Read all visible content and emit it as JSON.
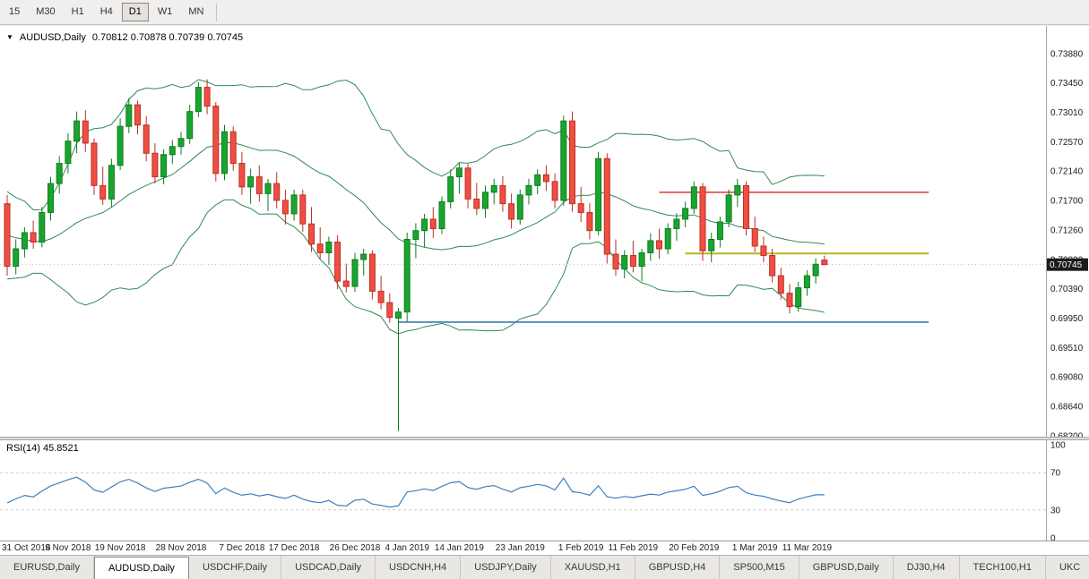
{
  "toolbar": {
    "timeframes": [
      "15",
      "M30",
      "H1",
      "H4",
      "D1",
      "W1",
      "MN"
    ],
    "active": "D1"
  },
  "chart": {
    "symbol_title": "AUDUSD,Daily",
    "ohlc_readout": "0.70812 0.70878 0.70739 0.70745",
    "current_price_label": "0.70745",
    "y_axis_labels": [
      "0.73880",
      "0.73450",
      "0.73010",
      "0.72570",
      "0.72140",
      "0.71700",
      "0.71260",
      "0.70820",
      "0.70390",
      "0.69950",
      "0.69510",
      "0.69080",
      "0.68640",
      "0.68200"
    ],
    "colors": {
      "bull": "#1aa52e",
      "bull_stroke": "#0f7c20",
      "bear": "#ef4f42",
      "bear_stroke": "#bd2f26",
      "bollinger": "#2e8b57",
      "rsi_line": "#3f7fbf",
      "price_label_bg": "#1c1c1c",
      "price_label_text": "#ffffff"
    }
  },
  "rsi_panel": {
    "label": "RSI(14) 45.8521",
    "levels": [
      100,
      70,
      30,
      0
    ],
    "dashed_levels": [
      70,
      30
    ]
  },
  "tabs": {
    "items": [
      "EURUSD,Daily",
      "AUDUSD,Daily",
      "USDCHF,Daily",
      "USDCAD,Daily",
      "USDCNH,H4",
      "USDJPY,Daily",
      "XAUUSD,H1",
      "GBPUSD,H4",
      "SP500,M15",
      "GBPUSD,Daily",
      "DJ30,H4",
      "TECH100,H1",
      "UKC"
    ],
    "active": "AUDUSD,Daily",
    "scroll_left_glyph": "◄"
  },
  "chart_data": {
    "type": "candlestick",
    "title": "AUDUSD,Daily",
    "timeframe": "D1",
    "y_range": [
      0.682,
      0.7388
    ],
    "current_ohlc": {
      "open": 0.70812,
      "high": 0.70878,
      "low": 0.70739,
      "close": 0.70745
    },
    "indicators": [
      {
        "name": "Bollinger Bands",
        "period": 20,
        "deviation": 2
      },
      {
        "name": "RSI",
        "period": 14,
        "value": 45.8521
      }
    ],
    "pre_closes": [
      0.719,
      0.7175,
      0.716,
      0.718,
      0.715,
      0.712,
      0.7095,
      0.708,
      0.711,
      0.713,
      0.7105,
      0.7085,
      0.7065,
      0.709,
      0.712,
      0.714,
      0.7115,
      0.7095,
      0.7125,
      0.715
    ],
    "candles_ohlc": [
      [
        0.7165,
        0.7178,
        0.7058,
        0.7072
      ],
      [
        0.7072,
        0.7112,
        0.706,
        0.7098
      ],
      [
        0.7098,
        0.713,
        0.7085,
        0.7122
      ],
      [
        0.7122,
        0.714,
        0.7098,
        0.7108
      ],
      [
        0.7108,
        0.716,
        0.71,
        0.7152
      ],
      [
        0.7152,
        0.7205,
        0.714,
        0.7195
      ],
      [
        0.7195,
        0.7236,
        0.718,
        0.7225
      ],
      [
        0.7225,
        0.727,
        0.721,
        0.7258
      ],
      [
        0.7258,
        0.7302,
        0.724,
        0.7288
      ],
      [
        0.7288,
        0.7304,
        0.7242,
        0.7255
      ],
      [
        0.7255,
        0.7262,
        0.7178,
        0.7192
      ],
      [
        0.7192,
        0.722,
        0.7163,
        0.7172
      ],
      [
        0.7172,
        0.7232,
        0.716,
        0.7222
      ],
      [
        0.7222,
        0.7292,
        0.7215,
        0.728
      ],
      [
        0.728,
        0.7322,
        0.727,
        0.7312
      ],
      [
        0.7312,
        0.7318,
        0.7268,
        0.7282
      ],
      [
        0.7282,
        0.7295,
        0.7228,
        0.724
      ],
      [
        0.724,
        0.7255,
        0.7195,
        0.7205
      ],
      [
        0.7205,
        0.7246,
        0.7194,
        0.7238
      ],
      [
        0.7238,
        0.726,
        0.7224,
        0.725
      ],
      [
        0.725,
        0.7272,
        0.7238,
        0.7262
      ],
      [
        0.7262,
        0.7312,
        0.7254,
        0.7302
      ],
      [
        0.7302,
        0.7346,
        0.7294,
        0.7338
      ],
      [
        0.7338,
        0.735,
        0.7298,
        0.731
      ],
      [
        0.731,
        0.7316,
        0.7198,
        0.721
      ],
      [
        0.721,
        0.7282,
        0.72,
        0.7272
      ],
      [
        0.7272,
        0.728,
        0.7214,
        0.7225
      ],
      [
        0.7225,
        0.7242,
        0.7178,
        0.719
      ],
      [
        0.719,
        0.7217,
        0.7165,
        0.7205
      ],
      [
        0.7205,
        0.7222,
        0.7168,
        0.718
      ],
      [
        0.718,
        0.7202,
        0.7154,
        0.7195
      ],
      [
        0.7195,
        0.7212,
        0.7158,
        0.717
      ],
      [
        0.717,
        0.7186,
        0.7134,
        0.715
      ],
      [
        0.715,
        0.7186,
        0.714,
        0.7178
      ],
      [
        0.7178,
        0.7186,
        0.7123,
        0.7135
      ],
      [
        0.7135,
        0.716,
        0.7093,
        0.7105
      ],
      [
        0.7105,
        0.713,
        0.7083,
        0.7092
      ],
      [
        0.7092,
        0.7116,
        0.7074,
        0.7108
      ],
      [
        0.7108,
        0.7118,
        0.7038,
        0.705
      ],
      [
        0.705,
        0.7076,
        0.7033,
        0.7042
      ],
      [
        0.7042,
        0.7092,
        0.7034,
        0.7082
      ],
      [
        0.7082,
        0.7098,
        0.7058,
        0.709
      ],
      [
        0.709,
        0.7096,
        0.7023,
        0.7035
      ],
      [
        0.7035,
        0.7058,
        0.7008,
        0.7018
      ],
      [
        0.7018,
        0.7032,
        0.6988,
        0.6996
      ],
      [
        0.6995,
        0.701,
        0.6827,
        0.7004
      ],
      [
        0.7004,
        0.7122,
        0.699,
        0.7112
      ],
      [
        0.7112,
        0.7136,
        0.7084,
        0.7125
      ],
      [
        0.7125,
        0.715,
        0.71,
        0.7142
      ],
      [
        0.7142,
        0.716,
        0.7114,
        0.7128
      ],
      [
        0.7128,
        0.7176,
        0.712,
        0.7168
      ],
      [
        0.7168,
        0.7216,
        0.7158,
        0.7205
      ],
      [
        0.7205,
        0.7226,
        0.718,
        0.7218
      ],
      [
        0.7218,
        0.7224,
        0.7158,
        0.7172
      ],
      [
        0.7172,
        0.7196,
        0.7148,
        0.7158
      ],
      [
        0.7158,
        0.7192,
        0.7144,
        0.7182
      ],
      [
        0.7182,
        0.7202,
        0.7164,
        0.7192
      ],
      [
        0.7192,
        0.7206,
        0.7153,
        0.7165
      ],
      [
        0.7165,
        0.718,
        0.7128,
        0.7142
      ],
      [
        0.7142,
        0.7186,
        0.7134,
        0.7178
      ],
      [
        0.7178,
        0.7202,
        0.7164,
        0.7192
      ],
      [
        0.7192,
        0.7216,
        0.7179,
        0.7208
      ],
      [
        0.7208,
        0.7222,
        0.7184,
        0.7198
      ],
      [
        0.7198,
        0.721,
        0.7158,
        0.717
      ],
      [
        0.717,
        0.7296,
        0.7162,
        0.7288
      ],
      [
        0.7288,
        0.7302,
        0.7153,
        0.7165
      ],
      [
        0.7165,
        0.719,
        0.7138,
        0.7152
      ],
      [
        0.7152,
        0.7166,
        0.7112,
        0.7125
      ],
      [
        0.7125,
        0.7242,
        0.7118,
        0.7232
      ],
      [
        0.7232,
        0.724,
        0.7076,
        0.709
      ],
      [
        0.709,
        0.7112,
        0.7058,
        0.7068
      ],
      [
        0.7068,
        0.7096,
        0.7054,
        0.7088
      ],
      [
        0.7088,
        0.711,
        0.7063,
        0.7072
      ],
      [
        0.7072,
        0.7098,
        0.705,
        0.7092
      ],
      [
        0.7092,
        0.7121,
        0.708,
        0.711
      ],
      [
        0.711,
        0.7128,
        0.7083,
        0.7098
      ],
      [
        0.7098,
        0.7136,
        0.709,
        0.7128
      ],
      [
        0.7128,
        0.7151,
        0.711,
        0.7142
      ],
      [
        0.7142,
        0.7168,
        0.713,
        0.7158
      ],
      [
        0.7158,
        0.7198,
        0.715,
        0.719
      ],
      [
        0.719,
        0.7196,
        0.708,
        0.7095
      ],
      [
        0.7095,
        0.7122,
        0.7078,
        0.7112
      ],
      [
        0.7112,
        0.7146,
        0.71,
        0.7138
      ],
      [
        0.7138,
        0.7186,
        0.713,
        0.7178
      ],
      [
        0.7178,
        0.7202,
        0.716,
        0.7192
      ],
      [
        0.7192,
        0.7198,
        0.7118,
        0.7128
      ],
      [
        0.7128,
        0.7146,
        0.7093,
        0.7102
      ],
      [
        0.7102,
        0.7116,
        0.7078,
        0.7088
      ],
      [
        0.7088,
        0.7098,
        0.7048,
        0.7058
      ],
      [
        0.7058,
        0.707,
        0.7023,
        0.7032
      ],
      [
        0.7032,
        0.7046,
        0.7002,
        0.7012
      ],
      [
        0.7012,
        0.7049,
        0.7004,
        0.704
      ],
      [
        0.704,
        0.7066,
        0.7028,
        0.7058
      ],
      [
        0.7058,
        0.7084,
        0.7046,
        0.7075
      ],
      [
        0.70812,
        0.70878,
        0.70739,
        0.70745
      ]
    ],
    "hlines": [
      {
        "name": "resistance-line",
        "price": 0.7182,
        "color": "#e23535",
        "from_index": 75,
        "to_index": 106,
        "stroke_width": 1.6
      },
      {
        "name": "current-level-line",
        "price": 0.7091,
        "color": "#b5b51c",
        "from_index": 78,
        "to_index": 106,
        "stroke_width": 2
      },
      {
        "name": "support-line",
        "price": 0.6989,
        "color": "#3d7ab8",
        "from_index": 45,
        "to_index": 106,
        "stroke_width": 1.6
      }
    ],
    "x_axis_labels": [
      {
        "label": "31 Oct 2018",
        "index": 0
      },
      {
        "label": "9 Nov 2018",
        "index": 7
      },
      {
        "label": "19 Nov 2018",
        "index": 13
      },
      {
        "label": "28 Nov 2018",
        "index": 20
      },
      {
        "label": "7 Dec 2018",
        "index": 27
      },
      {
        "label": "17 Dec 2018",
        "index": 33
      },
      {
        "label": "26 Dec 2018",
        "index": 40
      },
      {
        "label": "4 Jan 2019",
        "index": 46
      },
      {
        "label": "14 Jan 2019",
        "index": 52
      },
      {
        "label": "23 Jan 2019",
        "index": 59
      },
      {
        "label": "1 Feb 2019",
        "index": 66
      },
      {
        "label": "11 Feb 2019",
        "index": 72
      },
      {
        "label": "20 Feb 2019",
        "index": 79
      },
      {
        "label": "1 Mar 2019",
        "index": 86
      },
      {
        "label": "11 Mar 2019",
        "index": 92
      }
    ]
  }
}
